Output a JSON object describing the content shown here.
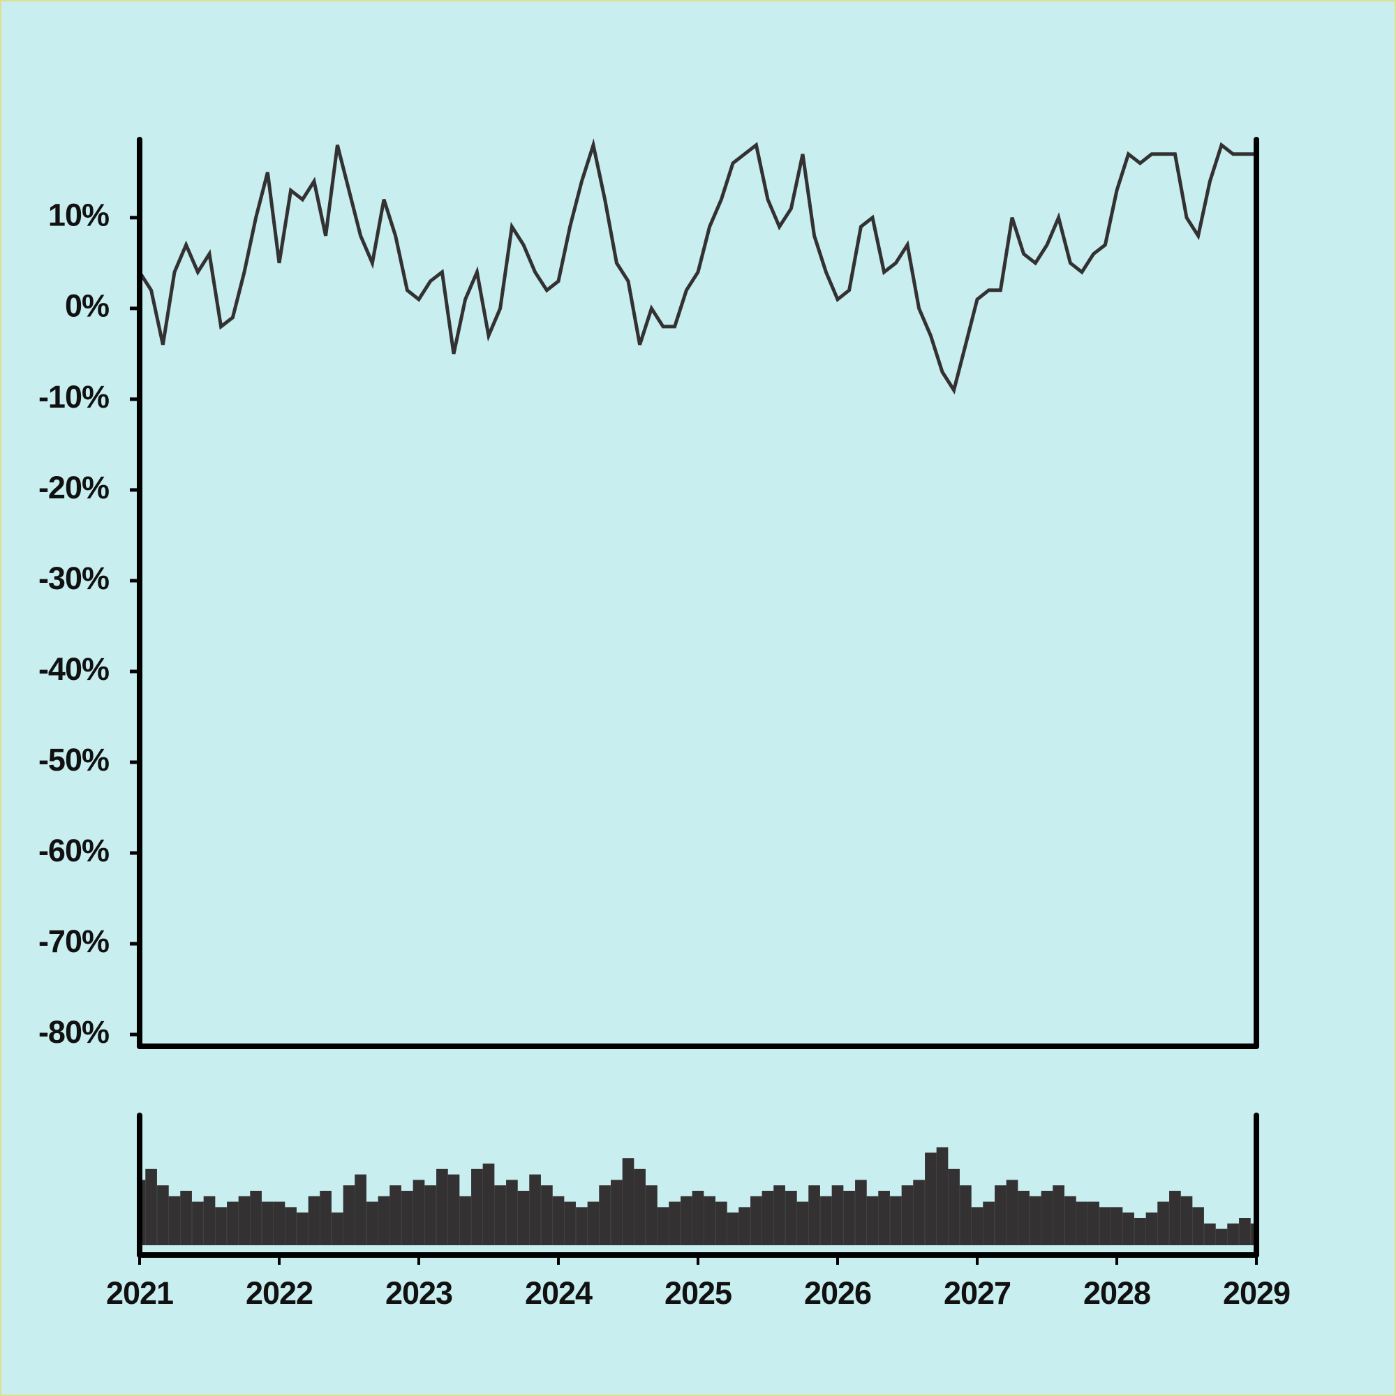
{
  "chart_data": [
    {
      "type": "line",
      "x": [
        2021,
        2021.083,
        2021.167,
        2021.25,
        2021.333,
        2021.417,
        2021.5,
        2021.583,
        2021.667,
        2021.75,
        2021.833,
        2021.917,
        2022,
        2022.083,
        2022.167,
        2022.25,
        2022.333,
        2022.417,
        2022.5,
        2022.583,
        2022.667,
        2022.75,
        2022.833,
        2022.917,
        2023,
        2023.083,
        2023.167,
        2023.25,
        2023.333,
        2023.417,
        2023.5,
        2023.583,
        2023.667,
        2023.75,
        2023.833,
        2023.917,
        2024,
        2024.083,
        2024.167,
        2024.25,
        2024.333,
        2024.417,
        2024.5,
        2024.583,
        2024.667,
        2024.75,
        2024.833,
        2024.917,
        2025,
        2025.083,
        2025.167,
        2025.25,
        2025.333,
        2025.417,
        2025.5,
        2025.583,
        2025.667,
        2025.75,
        2025.833,
        2025.917,
        2026,
        2026.083,
        2026.167,
        2026.25,
        2026.333,
        2026.417,
        2026.5,
        2026.583,
        2026.667,
        2026.75,
        2026.833,
        2026.917,
        2027,
        2027.083,
        2027.167,
        2027.25,
        2027.333,
        2027.417,
        2027.5,
        2027.583,
        2027.667,
        2027.75,
        2027.833,
        2027.917,
        2028,
        2028.083,
        2028.167,
        2028.25,
        2028.333,
        2028.417,
        2028.5,
        2028.583,
        2028.667,
        2028.75,
        2028.833,
        2028.917,
        2029
      ],
      "values": [
        4,
        2,
        -4,
        4,
        7,
        4,
        6,
        -2,
        -1,
        4,
        10,
        15,
        5,
        13,
        12,
        14,
        8,
        18,
        13,
        8,
        5,
        12,
        8,
        2,
        1,
        3,
        4,
        -5,
        1,
        4,
        -3,
        0,
        9,
        7,
        4,
        2,
        3,
        9,
        14,
        18,
        12,
        5,
        3,
        -4,
        0,
        -2,
        -2,
        2,
        4,
        9,
        12,
        16,
        17,
        18,
        12,
        9,
        11,
        17,
        8,
        4,
        1,
        2,
        9,
        10,
        4,
        5,
        7,
        0,
        -3,
        -7,
        -9,
        -4,
        1,
        2,
        2,
        10,
        6,
        5,
        7,
        10,
        5,
        4,
        6,
        7,
        13,
        17,
        16,
        17,
        17,
        17,
        10,
        8,
        14,
        18,
        17,
        17,
        17
      ],
      "color": "#333132",
      "xlim": [
        2021,
        2029
      ],
      "ylim": [
        -81.3,
        18.6
      ],
      "yticks": [
        {
          "value": -80,
          "label": "-80%"
        },
        {
          "value": -70,
          "label": "-70%"
        },
        {
          "value": -60,
          "label": "-60%"
        },
        {
          "value": -50,
          "label": "-50%"
        },
        {
          "value": -40,
          "label": "-40%"
        },
        {
          "value": -30,
          "label": "-30%"
        },
        {
          "value": -20,
          "label": "-20%"
        },
        {
          "value": -10,
          "label": "-10%"
        },
        {
          "value": 0,
          "label": "0%"
        },
        {
          "value": 10,
          "label": "10%"
        }
      ]
    },
    {
      "type": "bar",
      "x": [
        2021,
        2021.083,
        2021.167,
        2021.25,
        2021.333,
        2021.417,
        2021.5,
        2021.583,
        2021.667,
        2021.75,
        2021.833,
        2021.917,
        2022,
        2022.083,
        2022.167,
        2022.25,
        2022.333,
        2022.417,
        2022.5,
        2022.583,
        2022.667,
        2022.75,
        2022.833,
        2022.917,
        2023,
        2023.083,
        2023.167,
        2023.25,
        2023.333,
        2023.417,
        2023.5,
        2023.583,
        2023.667,
        2023.75,
        2023.833,
        2023.917,
        2024,
        2024.083,
        2024.167,
        2024.25,
        2024.333,
        2024.417,
        2024.5,
        2024.583,
        2024.667,
        2024.75,
        2024.833,
        2024.917,
        2025,
        2025.083,
        2025.167,
        2025.25,
        2025.333,
        2025.417,
        2025.5,
        2025.583,
        2025.667,
        2025.75,
        2025.833,
        2025.917,
        2026,
        2026.083,
        2026.167,
        2026.25,
        2026.333,
        2026.417,
        2026.5,
        2026.583,
        2026.667,
        2026.75,
        2026.833,
        2026.917,
        2027,
        2027.083,
        2027.167,
        2027.25,
        2027.333,
        2027.417,
        2027.5,
        2027.583,
        2027.667,
        2027.75,
        2027.833,
        2027.917,
        2028,
        2028.083,
        2028.167,
        2028.25,
        2028.333,
        2028.417,
        2028.5,
        2028.583,
        2028.667,
        2028.75,
        2028.833,
        2028.917,
        2029
      ],
      "values": [
        60,
        70,
        55,
        45,
        50,
        40,
        45,
        35,
        40,
        45,
        50,
        40,
        40,
        35,
        30,
        45,
        50,
        30,
        55,
        65,
        40,
        45,
        55,
        50,
        60,
        55,
        70,
        65,
        45,
        70,
        75,
        55,
        60,
        50,
        65,
        55,
        45,
        40,
        35,
        40,
        55,
        60,
        80,
        70,
        55,
        35,
        40,
        45,
        50,
        45,
        40,
        30,
        35,
        45,
        50,
        55,
        50,
        40,
        55,
        45,
        55,
        50,
        60,
        45,
        50,
        45,
        55,
        60,
        85,
        90,
        70,
        55,
        35,
        40,
        55,
        60,
        50,
        45,
        50,
        55,
        45,
        40,
        40,
        35,
        35,
        30,
        25,
        30,
        40,
        50,
        45,
        35,
        20,
        15,
        20,
        25,
        20
      ],
      "color": "#333132",
      "xlim": [
        2021,
        2029
      ],
      "ylim": [
        0,
        100
      ],
      "xticks": [
        2021,
        2022,
        2023,
        2024,
        2025,
        2026,
        2027,
        2028,
        2029
      ]
    }
  ]
}
